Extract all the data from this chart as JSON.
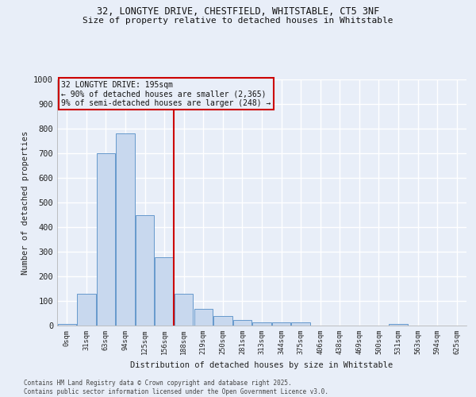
{
  "title": "32, LONGTYE DRIVE, CHESTFIELD, WHITSTABLE, CT5 3NF",
  "subtitle": "Size of property relative to detached houses in Whitstable",
  "xlabel": "Distribution of detached houses by size in Whitstable",
  "ylabel": "Number of detached properties",
  "bar_color": "#c8d8ee",
  "bar_edge_color": "#6699cc",
  "vline_color": "#cc0000",
  "vline_index": 6,
  "annotation_title": "32 LONGTYE DRIVE: 195sqm",
  "annotation_line1": "← 90% of detached houses are smaller (2,365)",
  "annotation_line2": "9% of semi-detached houses are larger (248) →",
  "annotation_box_color": "#cc0000",
  "categories": [
    "0sqm",
    "31sqm",
    "63sqm",
    "94sqm",
    "125sqm",
    "156sqm",
    "188sqm",
    "219sqm",
    "250sqm",
    "281sqm",
    "313sqm",
    "344sqm",
    "375sqm",
    "406sqm",
    "438sqm",
    "469sqm",
    "500sqm",
    "531sqm",
    "563sqm",
    "594sqm",
    "625sqm"
  ],
  "values": [
    5,
    128,
    700,
    780,
    450,
    278,
    130,
    68,
    40,
    22,
    12,
    12,
    12,
    0,
    0,
    0,
    0,
    8,
    0,
    0,
    0
  ],
  "ylim": [
    0,
    1000
  ],
  "yticks": [
    0,
    100,
    200,
    300,
    400,
    500,
    600,
    700,
    800,
    900,
    1000
  ],
  "background_color": "#e8eef8",
  "grid_color": "#ffffff",
  "footer1": "Contains HM Land Registry data © Crown copyright and database right 2025.",
  "footer2": "Contains public sector information licensed under the Open Government Licence v3.0."
}
